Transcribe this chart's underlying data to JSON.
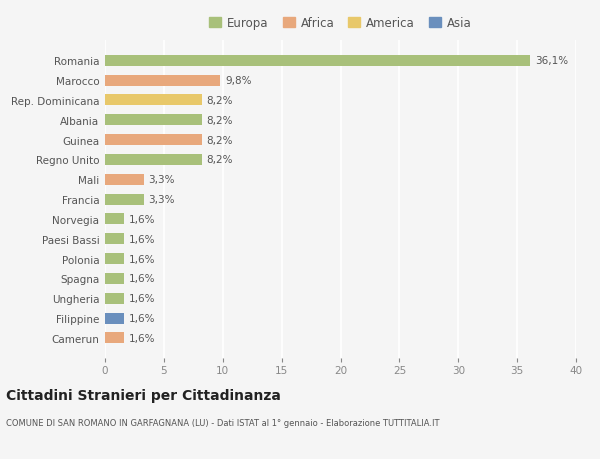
{
  "categories": [
    "Romania",
    "Marocco",
    "Rep. Dominicana",
    "Albania",
    "Guinea",
    "Regno Unito",
    "Mali",
    "Francia",
    "Norvegia",
    "Paesi Bassi",
    "Polonia",
    "Spagna",
    "Ungheria",
    "Filippine",
    "Camerun"
  ],
  "values": [
    36.1,
    9.8,
    8.2,
    8.2,
    8.2,
    8.2,
    3.3,
    3.3,
    1.6,
    1.6,
    1.6,
    1.6,
    1.6,
    1.6,
    1.6
  ],
  "labels": [
    "36,1%",
    "9,8%",
    "8,2%",
    "8,2%",
    "8,2%",
    "8,2%",
    "3,3%",
    "3,3%",
    "1,6%",
    "1,6%",
    "1,6%",
    "1,6%",
    "1,6%",
    "1,6%",
    "1,6%"
  ],
  "colors": [
    "#a8c07a",
    "#e8a87c",
    "#e8c86a",
    "#a8c07a",
    "#e8a87c",
    "#a8c07a",
    "#e8a87c",
    "#a8c07a",
    "#a8c07a",
    "#a8c07a",
    "#a8c07a",
    "#a8c07a",
    "#a8c07a",
    "#6a8fbd",
    "#e8a87c"
  ],
  "continent_colors": {
    "Europa": "#a8c07a",
    "Africa": "#e8a87c",
    "America": "#e8c86a",
    "Asia": "#6a8fbd"
  },
  "xlim": [
    0,
    40
  ],
  "xticks": [
    0,
    5,
    10,
    15,
    20,
    25,
    30,
    35,
    40
  ],
  "title": "Cittadini Stranieri per Cittadinanza",
  "subtitle": "COMUNE DI SAN ROMANO IN GARFAGNANA (LU) - Dati ISTAT al 1° gennaio - Elaborazione TUTTITALIA.IT",
  "bg_color": "#f5f5f5",
  "bar_height": 0.55,
  "label_fontsize": 7.5,
  "tick_fontsize": 7.5,
  "legend_fontsize": 8.5
}
